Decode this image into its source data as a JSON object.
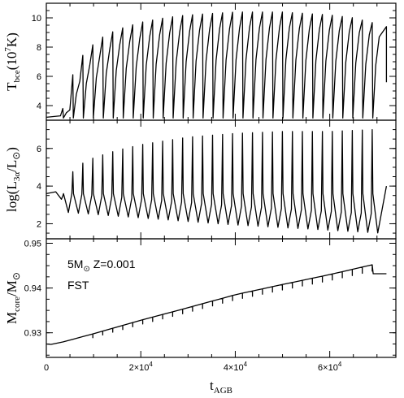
{
  "chart_data": [
    {
      "type": "line",
      "panel": "top",
      "ylabel": {
        "base": "T",
        "sub": "bce",
        "rest": "(10",
        "sup": "7",
        "end": "K)"
      },
      "ylim": [
        3,
        11
      ],
      "yticks": [
        "4",
        "6",
        "8",
        "10"
      ],
      "yticks_values": [
        4,
        6,
        8,
        10
      ],
      "pulses": {
        "count": 32,
        "x_start": 3500,
        "x_end": 69000,
        "shape": "sawtooth_rising_envelope"
      },
      "series": [
        {
          "points": [
            [
              0,
              3.2
            ],
            [
              3000,
              3.3
            ],
            [
              4200,
              4.5
            ],
            [
              5000,
              5.5
            ],
            [
              6000,
              6.5
            ],
            [
              7000,
              7.1
            ],
            [
              8500,
              7.8
            ],
            [
              10000,
              8.2
            ],
            [
              12000,
              8.7
            ],
            [
              15000,
              9.2
            ],
            [
              20000,
              9.7
            ],
            [
              25000,
              10.0
            ],
            [
              30000,
              10.2
            ],
            [
              35000,
              10.3
            ],
            [
              40000,
              10.4
            ],
            [
              45000,
              10.4
            ],
            [
              50000,
              10.4
            ],
            [
              55000,
              10.3
            ],
            [
              60000,
              10.2
            ],
            [
              65000,
              10.0
            ],
            [
              70000,
              9.6
            ],
            [
              72000,
              9.4
            ]
          ]
        }
      ]
    },
    {
      "type": "line",
      "panel": "middle",
      "ylabel": {
        "base": "log(L",
        "sub": "3α",
        "rest": "/L",
        "sym": "sun",
        "end": ")"
      },
      "ylim": [
        1.2,
        7.5
      ],
      "yticks": [
        "2",
        "4",
        "6"
      ],
      "yticks_values": [
        2,
        4,
        6
      ],
      "pulses": {
        "count": 32,
        "x_start": 3500,
        "x_end": 69000,
        "shape": "spike_with_valley"
      },
      "series": [
        {
          "points": [
            [
              0,
              3.6
            ],
            [
              2000,
              3.7
            ],
            [
              3200,
              3.3
            ],
            [
              6000,
              5.0
            ],
            [
              10000,
              5.5
            ],
            [
              15000,
              5.9
            ],
            [
              20000,
              6.2
            ],
            [
              30000,
              6.6
            ],
            [
              40000,
              6.8
            ],
            [
              50000,
              6.9
            ],
            [
              60000,
              6.9
            ],
            [
              69000,
              7.0
            ],
            [
              72000,
              4.0
            ]
          ]
        }
      ]
    },
    {
      "type": "line",
      "panel": "bottom",
      "ylabel": {
        "base": "M",
        "sub": "core",
        "rest": "/M",
        "sym": "sun",
        "end": ""
      },
      "ylim": [
        0.9245,
        0.951
      ],
      "yticks": [
        "0.93",
        "0.94",
        "0.95"
      ],
      "yticks_values": [
        0.93,
        0.94,
        0.95
      ],
      "x": [
        0,
        1000,
        3000,
        10000,
        20000,
        30000,
        40000,
        50000,
        60000,
        69000,
        69200,
        72000
      ],
      "y": [
        0.9275,
        0.9274,
        0.9278,
        0.9298,
        0.9328,
        0.9356,
        0.9385,
        0.9408,
        0.943,
        0.9452,
        0.9432,
        0.9432
      ],
      "annotations": [
        {
          "text_pre": "5M",
          "sym": "sun",
          "text_post": " Z=0.001"
        },
        {
          "text_pre": "FST",
          "sym": "",
          "text_post": ""
        }
      ]
    }
  ],
  "xaxis": {
    "label_base": "t",
    "label_sub": "AGB",
    "xlim": [
      0,
      74000
    ],
    "ticks": [
      {
        "value": 0,
        "base": "0",
        "sup": ""
      },
      {
        "value": 20000,
        "base": "2×10",
        "sup": "4"
      },
      {
        "value": 40000,
        "base": "4×10",
        "sup": "4"
      },
      {
        "value": 60000,
        "base": "6×10",
        "sup": "4"
      }
    ]
  }
}
